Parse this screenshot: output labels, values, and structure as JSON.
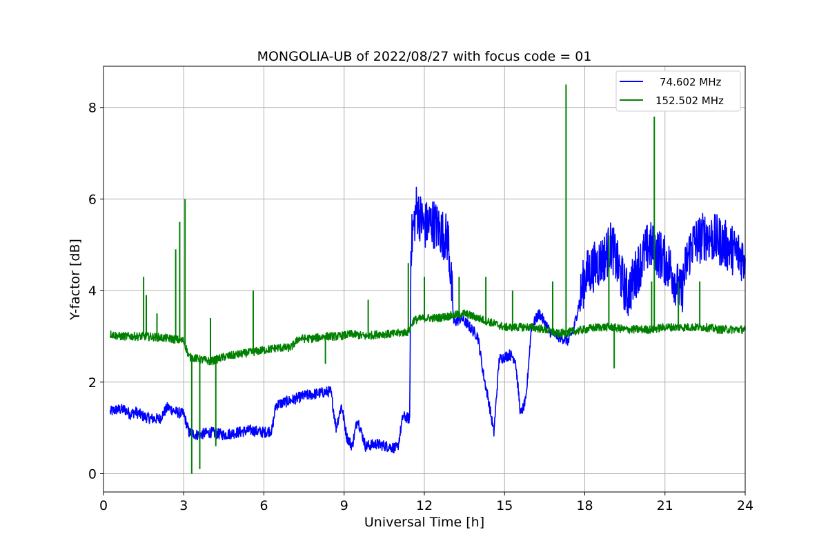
{
  "chart_data": {
    "type": "line",
    "title": "MONGOLIA-UB of 2022/08/27 with focus code = 01",
    "xlabel": "Universal Time [h]",
    "ylabel": "Y-factor [dB]",
    "xlim": [
      0,
      24
    ],
    "ylim": [
      -0.4,
      8.9
    ],
    "xticks": [
      0,
      3,
      6,
      9,
      12,
      15,
      18,
      21,
      24
    ],
    "yticks": [
      0,
      2,
      4,
      6,
      8
    ],
    "grid": true,
    "legend_position": "top-right",
    "series": [
      {
        "name": "74.602 MHz",
        "color": "#0000ff",
        "points": [
          [
            0.25,
            1.35
          ],
          [
            0.5,
            1.4
          ],
          [
            0.8,
            1.4
          ],
          [
            1.0,
            1.3
          ],
          [
            1.2,
            1.35
          ],
          [
            1.5,
            1.25
          ],
          [
            1.8,
            1.2
          ],
          [
            2.1,
            1.2
          ],
          [
            2.4,
            1.45
          ],
          [
            2.7,
            1.35
          ],
          [
            3.0,
            1.3
          ],
          [
            3.2,
            0.9
          ],
          [
            3.5,
            0.85
          ],
          [
            4.0,
            0.9
          ],
          [
            4.5,
            0.85
          ],
          [
            5.0,
            0.9
          ],
          [
            5.5,
            0.95
          ],
          [
            6.0,
            0.9
          ],
          [
            6.3,
            0.95
          ],
          [
            6.45,
            1.5
          ],
          [
            7.0,
            1.6
          ],
          [
            7.5,
            1.7
          ],
          [
            8.0,
            1.75
          ],
          [
            8.5,
            1.8
          ],
          [
            8.7,
            1.0
          ],
          [
            8.9,
            1.5
          ],
          [
            9.1,
            0.8
          ],
          [
            9.3,
            0.6
          ],
          [
            9.5,
            1.2
          ],
          [
            9.8,
            0.6
          ],
          [
            10.2,
            0.65
          ],
          [
            10.6,
            0.6
          ],
          [
            11.0,
            0.55
          ],
          [
            11.2,
            1.25
          ],
          [
            11.45,
            1.2
          ],
          [
            11.5,
            5.0
          ],
          [
            11.7,
            5.8
          ],
          [
            12.0,
            5.4
          ],
          [
            12.3,
            5.5
          ],
          [
            12.6,
            5.3
          ],
          [
            12.9,
            5.1
          ],
          [
            13.1,
            3.3
          ],
          [
            13.4,
            3.4
          ],
          [
            13.7,
            3.2
          ],
          [
            14.0,
            3.0
          ],
          [
            14.2,
            2.2
          ],
          [
            14.4,
            1.6
          ],
          [
            14.6,
            0.9
          ],
          [
            14.8,
            2.5
          ],
          [
            15.2,
            2.6
          ],
          [
            15.4,
            2.5
          ],
          [
            15.6,
            1.3
          ],
          [
            15.8,
            1.6
          ],
          [
            16.0,
            3.2
          ],
          [
            16.3,
            3.5
          ],
          [
            16.7,
            3.1
          ],
          [
            17.0,
            3.0
          ],
          [
            17.4,
            2.9
          ],
          [
            17.6,
            3.2
          ],
          [
            18.0,
            4.3
          ],
          [
            18.3,
            4.5
          ],
          [
            18.7,
            4.7
          ],
          [
            19.0,
            5.0
          ],
          [
            19.3,
            4.4
          ],
          [
            19.6,
            3.9
          ],
          [
            20.0,
            4.5
          ],
          [
            20.4,
            5.0
          ],
          [
            20.8,
            4.8
          ],
          [
            21.2,
            4.5
          ],
          [
            21.6,
            3.9
          ],
          [
            21.8,
            4.6
          ],
          [
            22.0,
            5.0
          ],
          [
            22.5,
            5.2
          ],
          [
            23.0,
            5.1
          ],
          [
            23.5,
            4.9
          ],
          [
            24.0,
            4.7
          ]
        ]
      },
      {
        "name": "152.502 MHz",
        "color": "#008000",
        "points": [
          [
            0.25,
            3.05
          ],
          [
            0.6,
            3.0
          ],
          [
            1.0,
            3.0
          ],
          [
            1.5,
            3.0
          ],
          [
            2.0,
            2.98
          ],
          [
            2.5,
            2.95
          ],
          [
            3.0,
            2.9
          ],
          [
            3.2,
            2.55
          ],
          [
            3.6,
            2.5
          ],
          [
            4.0,
            2.45
          ],
          [
            4.5,
            2.55
          ],
          [
            5.0,
            2.6
          ],
          [
            5.5,
            2.65
          ],
          [
            6.0,
            2.7
          ],
          [
            6.5,
            2.75
          ],
          [
            7.0,
            2.75
          ],
          [
            7.3,
            2.95
          ],
          [
            7.8,
            2.95
          ],
          [
            8.3,
            3.0
          ],
          [
            8.8,
            3.0
          ],
          [
            9.3,
            3.05
          ],
          [
            9.8,
            3.0
          ],
          [
            10.3,
            3.05
          ],
          [
            10.8,
            3.05
          ],
          [
            11.4,
            3.1
          ],
          [
            11.6,
            3.35
          ],
          [
            12.0,
            3.4
          ],
          [
            12.5,
            3.4
          ],
          [
            13.0,
            3.45
          ],
          [
            13.5,
            3.5
          ],
          [
            14.0,
            3.4
          ],
          [
            14.5,
            3.3
          ],
          [
            15.0,
            3.2
          ],
          [
            15.5,
            3.2
          ],
          [
            16.0,
            3.2
          ],
          [
            16.5,
            3.15
          ],
          [
            17.0,
            3.05
          ],
          [
            17.5,
            3.1
          ],
          [
            18.0,
            3.15
          ],
          [
            18.5,
            3.2
          ],
          [
            19.0,
            3.2
          ],
          [
            19.5,
            3.15
          ],
          [
            20.0,
            3.15
          ],
          [
            20.5,
            3.15
          ],
          [
            21.0,
            3.2
          ],
          [
            21.5,
            3.2
          ],
          [
            22.0,
            3.2
          ],
          [
            22.5,
            3.2
          ],
          [
            23.0,
            3.15
          ],
          [
            23.5,
            3.15
          ],
          [
            24.0,
            3.15
          ]
        ],
        "spikes": [
          [
            1.5,
            4.3
          ],
          [
            1.6,
            3.9
          ],
          [
            2.0,
            3.5
          ],
          [
            2.7,
            4.9
          ],
          [
            2.85,
            5.5
          ],
          [
            3.05,
            6.0
          ],
          [
            3.3,
            0.0
          ],
          [
            3.6,
            0.1
          ],
          [
            4.0,
            3.4
          ],
          [
            4.2,
            0.6
          ],
          [
            5.6,
            4.0
          ],
          [
            8.3,
            2.4
          ],
          [
            9.9,
            3.8
          ],
          [
            11.4,
            4.6
          ],
          [
            12.0,
            4.3
          ],
          [
            13.3,
            4.3
          ],
          [
            14.3,
            4.3
          ],
          [
            15.3,
            4.0
          ],
          [
            16.8,
            4.2
          ],
          [
            17.3,
            8.5
          ],
          [
            18.9,
            5.2
          ],
          [
            19.1,
            2.3
          ],
          [
            20.6,
            7.8
          ],
          [
            20.5,
            4.2
          ],
          [
            21.5,
            4.2
          ],
          [
            22.3,
            4.2
          ]
        ]
      }
    ]
  }
}
